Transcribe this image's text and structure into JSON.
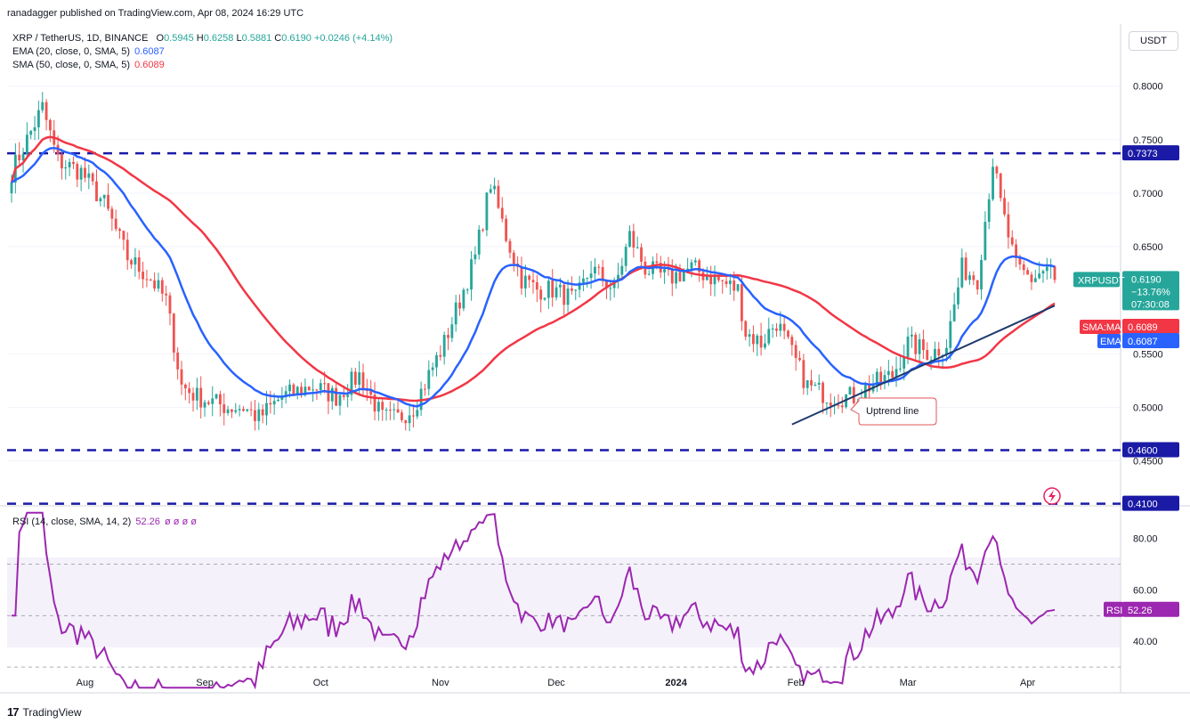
{
  "header": {
    "published_by": "ranadagger published on TradingView.com, Apr 08, 2024 16:29 UTC"
  },
  "currency_button": "USDT",
  "legend": {
    "symbol": "XRP / TetherUS, 1D, BINANCE",
    "ohlc": {
      "o_label": "O",
      "o": "0.5945",
      "h_label": "H",
      "h": "0.6258",
      "l_label": "L",
      "l": "0.5881",
      "c_label": "C",
      "c": "0.6190",
      "change": "+0.0246 (+4.14%)"
    },
    "ema": {
      "label": "EMA (20, close, 0, SMA, 5)",
      "value": "0.6087"
    },
    "sma": {
      "label": "SMA (50, close, 0, SMA, 5)",
      "value": "0.6089"
    },
    "rsi": {
      "label": "RSI (14, close, SMA, 14, 2)",
      "value": "52.26",
      "extra": "ø ø ø ø"
    }
  },
  "footer": {
    "brand": "TradingView"
  },
  "colors": {
    "up": "#26a69a",
    "down": "#ef5350",
    "ema": "#2962ff",
    "sma": "#f23645",
    "level": "#1a1aa6",
    "trend": "#1e3a6e",
    "rsi": "#9c27b0",
    "rsi_band": "#ede7f6",
    "tag_price": "#26a69a",
    "tag_level": "#1a1aa6"
  },
  "chart_data": {
    "type": "candlestick",
    "symbol": "XRPUSDT",
    "price_axis": {
      "ticks": [
        "0.8000",
        "0.7500",
        "0.7000",
        "0.6500",
        "0.5500",
        "0.5000",
        "0.4500"
      ],
      "ylim": [
        0.41,
        0.85
      ]
    },
    "time_axis": {
      "labels": [
        "Aug",
        "Sep",
        "Oct",
        "Nov",
        "Dec",
        "2024",
        "Feb",
        "Mar",
        "Apr"
      ]
    },
    "levels": [
      {
        "price": 0.7373,
        "label": "0.7373"
      },
      {
        "price": 0.46,
        "label": "0.4600"
      },
      {
        "price": 0.41,
        "label": "0.4100"
      }
    ],
    "price_tags": {
      "last": {
        "name": "XRPUSDT",
        "price": "0.6190",
        "change": "−13.76%",
        "countdown": "07:30:08"
      },
      "sma": {
        "name": "SMA:MA",
        "price": "0.6089"
      },
      "ema": {
        "name": "EMA",
        "price": "0.6087"
      }
    },
    "annotation": {
      "text": "Uptrend line",
      "from": {
        "date": "2024-01-31",
        "price": 0.484
      },
      "to": {
        "date": "2024-04-08",
        "price": 0.595
      }
    },
    "candles_ohlc_note": "Approximate daily OHLC series Jul 2023 – Apr 08 2024",
    "rsi": {
      "ticks": [
        "80.00",
        "60.00",
        "40.00"
      ],
      "upper": 70,
      "lower": 30,
      "last": "52.26",
      "label": "RSI"
    }
  }
}
